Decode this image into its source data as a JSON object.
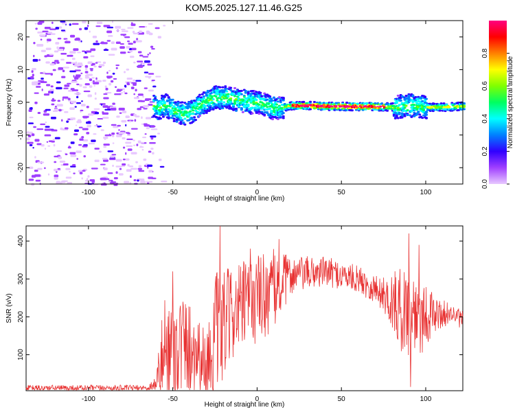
{
  "title": "KOM5.2025.127.11.46.G25",
  "colors": {
    "snr_line": "#e83232",
    "frame": "#000000"
  },
  "chart_data": [
    {
      "type": "heatmap",
      "title": "KOM5.2025.127.11.46.G25",
      "xlabel": "Height of straight line (km)",
      "ylabel": "Frequency (Hz)",
      "xlim": [
        -137,
        122
      ],
      "ylim": [
        -25,
        25
      ],
      "xticks": [
        -100,
        -50,
        0,
        50,
        100
      ],
      "yticks": [
        -20,
        -10,
        0,
        10,
        20
      ],
      "colorbar": {
        "label": "Normalized spectral amplitude",
        "range": [
          0,
          1
        ],
        "ticks": [
          "0.0",
          "0.2",
          "0.4",
          "0.6",
          "0.8"
        ],
        "tick_values": [
          0,
          0.2,
          0.4,
          0.6,
          0.8
        ],
        "colormap": [
          "#e8c8ff",
          "#a040ff",
          "#3000ff",
          "#0080ff",
          "#00ffff",
          "#00ff60",
          "#80ff00",
          "#ffff00",
          "#ff8000",
          "#ff0000",
          "#ff0080"
        ]
      },
      "track": [
        {
          "x": -60,
          "f": -2.0
        },
        {
          "x": -55,
          "f": -1.0
        },
        {
          "x": -50,
          "f": -2.5
        },
        {
          "x": -45,
          "f": -3.5
        },
        {
          "x": -40,
          "f": -3.0
        },
        {
          "x": -35,
          "f": -1.0
        },
        {
          "x": -30,
          "f": 0.5
        },
        {
          "x": -25,
          "f": 1.5
        },
        {
          "x": -20,
          "f": 1.5
        },
        {
          "x": -15,
          "f": 1.0
        },
        {
          "x": -10,
          "f": 0.5
        },
        {
          "x": -5,
          "f": 0.0
        },
        {
          "x": 0,
          "f": 0.0
        },
        {
          "x": 5,
          "f": -1.0
        },
        {
          "x": 10,
          "f": -2.0
        },
        {
          "x": 15,
          "f": -1.5
        },
        {
          "x": 20,
          "f": -1.0
        },
        {
          "x": 30,
          "f": -1.0
        },
        {
          "x": 40,
          "f": -1.2
        },
        {
          "x": 50,
          "f": -1.3
        },
        {
          "x": 60,
          "f": -1.3
        },
        {
          "x": 70,
          "f": -1.3
        },
        {
          "x": 80,
          "f": -1.5
        },
        {
          "x": 90,
          "f": -1.0
        },
        {
          "x": 100,
          "f": -1.5
        },
        {
          "x": 110,
          "f": -1.5
        },
        {
          "x": 122,
          "f": -1.2
        }
      ]
    },
    {
      "type": "line",
      "xlabel": "Height of straight line (km)",
      "ylabel": "SNR (v/v)",
      "xlim": [
        -137,
        122
      ],
      "ylim": [
        5,
        440
      ],
      "xticks": [
        -100,
        -50,
        0,
        50,
        100
      ],
      "yticks": [
        100,
        200,
        300,
        400
      ],
      "envelope": [
        {
          "x": -137,
          "base": 12,
          "amp": 8
        },
        {
          "x": -65,
          "base": 12,
          "amp": 8
        },
        {
          "x": -60,
          "base": 25,
          "amp": 20
        },
        {
          "x": -55,
          "base": 110,
          "amp": 150
        },
        {
          "x": -45,
          "base": 130,
          "amp": 140
        },
        {
          "x": -35,
          "base": 110,
          "amp": 110
        },
        {
          "x": -30,
          "base": 70,
          "amp": 80
        },
        {
          "x": -25,
          "base": 140,
          "amp": 180
        },
        {
          "x": -15,
          "base": 210,
          "amp": 120
        },
        {
          "x": 0,
          "base": 250,
          "amp": 120
        },
        {
          "x": 10,
          "base": 270,
          "amp": 110
        },
        {
          "x": 20,
          "base": 310,
          "amp": 50
        },
        {
          "x": 40,
          "base": 320,
          "amp": 40
        },
        {
          "x": 60,
          "base": 300,
          "amp": 35
        },
        {
          "x": 75,
          "base": 260,
          "amp": 45
        },
        {
          "x": 85,
          "base": 220,
          "amp": 110
        },
        {
          "x": 95,
          "base": 210,
          "amp": 130
        },
        {
          "x": 105,
          "base": 205,
          "amp": 50
        },
        {
          "x": 115,
          "base": 210,
          "amp": 25
        },
        {
          "x": 122,
          "base": 190,
          "amp": 25
        }
      ],
      "peaks": [
        {
          "x": -50,
          "y": 320
        },
        {
          "x": -22,
          "y": 440
        },
        {
          "x": -4,
          "y": 380
        },
        {
          "x": 13,
          "y": 405
        },
        {
          "x": 90,
          "y": 420
        },
        {
          "x": 96,
          "y": 390
        },
        {
          "x": 91,
          "y": 15
        }
      ]
    }
  ]
}
